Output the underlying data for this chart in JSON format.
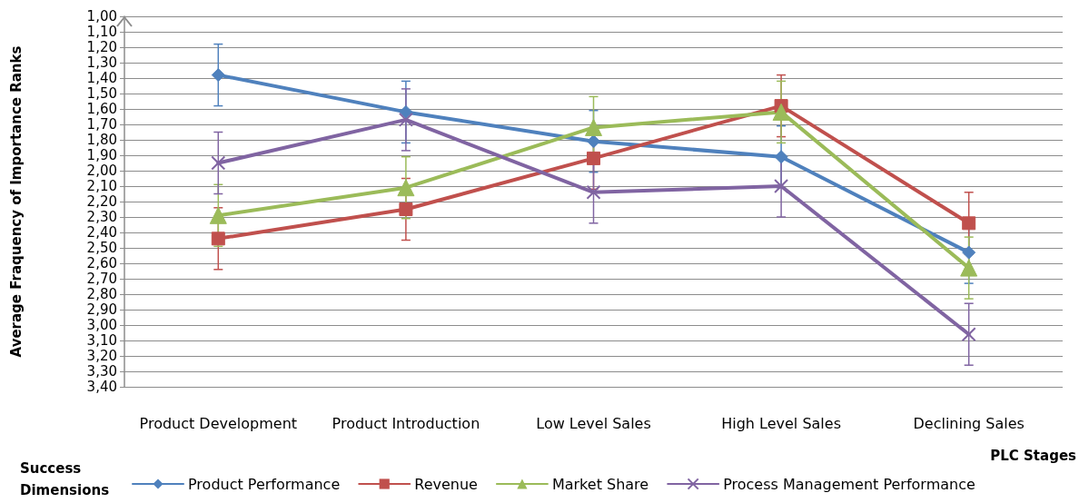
{
  "chart_data": {
    "type": "line",
    "ylabel": "Average Fraquency of Importance Ranks",
    "xlabel": "PLC Stages",
    "legend_title": "Success Dimensions",
    "categories": [
      "Product Development",
      "Product Introduction",
      "Low Level Sales",
      "High Level Sales",
      "Declining Sales"
    ],
    "series": [
      {
        "name": "Product Performance",
        "color": "#4f81bd",
        "marker": "diamond",
        "values": [
          1.38,
          1.62,
          1.81,
          1.91,
          2.53
        ],
        "errors": [
          0.2,
          0.2,
          0.2,
          0.2,
          0.2
        ]
      },
      {
        "name": "Revenue",
        "color": "#c0504d",
        "marker": "square",
        "values": [
          2.44,
          2.25,
          1.92,
          1.58,
          2.34
        ],
        "errors": [
          0.2,
          0.2,
          0.2,
          0.2,
          0.2
        ]
      },
      {
        "name": "Market Share",
        "color": "#9bbb59",
        "marker": "triangle",
        "values": [
          2.29,
          2.11,
          1.72,
          1.62,
          2.63
        ],
        "errors": [
          0.2,
          0.2,
          0.2,
          0.2,
          0.2
        ]
      },
      {
        "name": "Process Management Performance",
        "color": "#8064a2",
        "marker": "cross",
        "values": [
          1.95,
          1.67,
          2.14,
          2.1,
          3.06
        ],
        "errors": [
          0.2,
          0.2,
          0.2,
          0.2,
          0.2
        ]
      }
    ],
    "ylim": [
      3.4,
      1.0
    ],
    "yticks": [
      {
        "value": 1.0,
        "label": "1,00"
      },
      {
        "value": 1.1,
        "label": "1,10"
      },
      {
        "value": 1.2,
        "label": "1,20"
      },
      {
        "value": 1.3,
        "label": "1,30"
      },
      {
        "value": 1.4,
        "label": "1,40"
      },
      {
        "value": 1.5,
        "label": "1,50"
      },
      {
        "value": 1.6,
        "label": "1,60"
      },
      {
        "value": 1.7,
        "label": "1,70"
      },
      {
        "value": 1.8,
        "label": "1,80"
      },
      {
        "value": 1.9,
        "label": "1,90"
      },
      {
        "value": 2.0,
        "label": "2,00"
      },
      {
        "value": 2.1,
        "label": "2,10"
      },
      {
        "value": 2.2,
        "label": "2,20"
      },
      {
        "value": 2.3,
        "label": "2,30"
      },
      {
        "value": 2.4,
        "label": "2,40"
      },
      {
        "value": 2.5,
        "label": "2,50"
      },
      {
        "value": 2.6,
        "label": "2,60"
      },
      {
        "value": 2.7,
        "label": "2,70"
      },
      {
        "value": 2.8,
        "label": "2,80"
      },
      {
        "value": 2.9,
        "label": "2,90"
      },
      {
        "value": 3.0,
        "label": "3,00"
      },
      {
        "value": 3.1,
        "label": "3,10"
      },
      {
        "value": 3.2,
        "label": "3,20"
      },
      {
        "value": 3.3,
        "label": "3,30"
      },
      {
        "value": 3.4,
        "label": "3,40"
      }
    ],
    "grid": "y",
    "legend": "bottom",
    "line_style": "solid"
  }
}
